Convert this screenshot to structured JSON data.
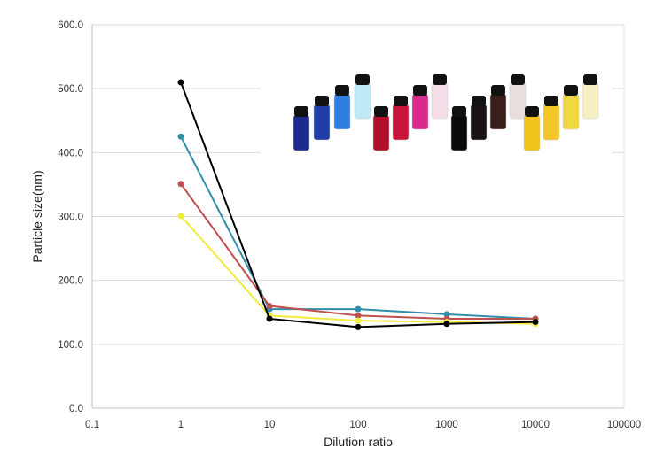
{
  "chart_data": {
    "type": "line",
    "title": "",
    "xlabel": "Dilution ratio",
    "ylabel": "Particle size(nm)",
    "x_scale": "log",
    "xlim": [
      0.1,
      100000
    ],
    "ylim": [
      0,
      600
    ],
    "x_ticks": [
      {
        "value": 0.1,
        "label": "0.1"
      },
      {
        "value": 1,
        "label": "1"
      },
      {
        "value": 10,
        "label": "10"
      },
      {
        "value": 100,
        "label": "100"
      },
      {
        "value": 1000,
        "label": "1000"
      },
      {
        "value": 10000,
        "label": "10000"
      },
      {
        "value": 100000,
        "label": "100000"
      }
    ],
    "y_ticks": [
      {
        "value": 0,
        "label": "0.0"
      },
      {
        "value": 100,
        "label": "100.0"
      },
      {
        "value": 200,
        "label": "200.0"
      },
      {
        "value": 300,
        "label": "300.0"
      },
      {
        "value": 400,
        "label": "400.0"
      },
      {
        "value": 500,
        "label": "500.0"
      },
      {
        "value": 600,
        "label": "600.0"
      }
    ],
    "grid": true,
    "legend": "none",
    "x": [
      1,
      10,
      100,
      1000,
      10000
    ],
    "series": [
      {
        "name": "blue",
        "color": "#2f8ea8",
        "values": [
          425,
          155,
          155,
          147,
          140
        ]
      },
      {
        "name": "red",
        "color": "#c0504d",
        "values": [
          351,
          160,
          145,
          140,
          140
        ]
      },
      {
        "name": "yellow",
        "color": "#f2ea3c",
        "values": [
          301,
          145,
          137,
          135,
          132
        ]
      },
      {
        "name": "black",
        "color": "#000000",
        "values": [
          510,
          140,
          127,
          132,
          135
        ]
      }
    ]
  },
  "inset_photo": {
    "description_colors": {
      "blue": [
        "#1c2a8c",
        "#1f3ea8",
        "#2e7fe0",
        "#bfe9f4"
      ],
      "red": [
        "#b0102c",
        "#c8153c",
        "#d82a8a",
        "#f4dde8"
      ],
      "black": [
        "#0a0a0a",
        "#1a1212",
        "#3a1e1a",
        "#e8dede"
      ],
      "yellow": [
        "#f1c21a",
        "#f2c626",
        "#f0d843",
        "#f6efc4"
      ],
      "cap": "#111111"
    }
  }
}
